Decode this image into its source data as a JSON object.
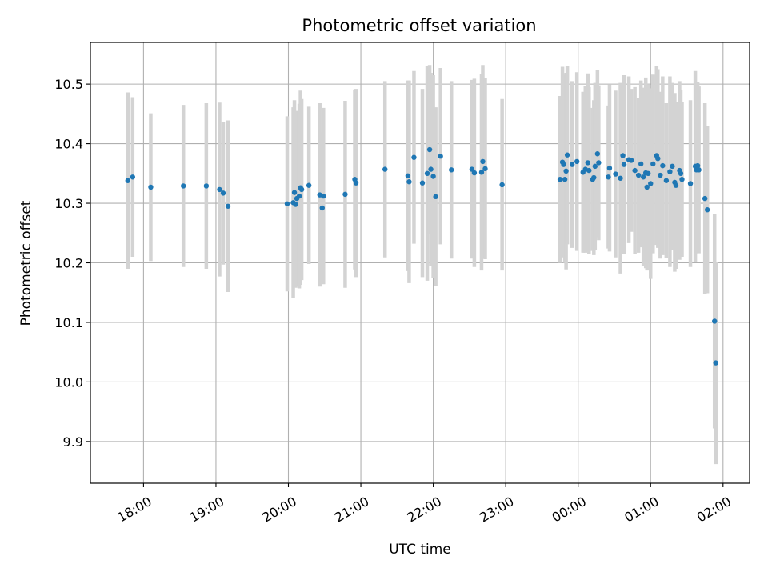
{
  "chart_data": {
    "type": "scatter",
    "title": "Photometric offset variation",
    "xlabel": "UTC time",
    "ylabel": "Photometric offset",
    "grid": true,
    "legend": "none",
    "x_unit": "hours (UTC, continuing past midnight)",
    "xlim": [
      "17:16",
      "02:22"
    ],
    "ylim": [
      9.83,
      10.57
    ],
    "x_tick_labels": [
      "18:00",
      "19:00",
      "20:00",
      "21:00",
      "22:00",
      "23:00",
      "00:00",
      "01:00",
      "02:00"
    ],
    "y_tick_values": [
      9.9,
      10.0,
      10.1,
      10.2,
      10.3,
      10.4,
      10.5
    ],
    "y_tick_labels": [
      "9.9",
      "10.0",
      "10.1",
      "10.2",
      "10.3",
      "10.4",
      "10.5"
    ],
    "colors": {
      "point": "#1f77b4",
      "errorbar": "#d3d3d3",
      "grid": "#b0b0b0"
    },
    "series": [
      {
        "values": [
          {
            "t": "17:47",
            "y": 10.338,
            "err": 0.148
          },
          {
            "t": "17:51",
            "y": 10.344,
            "err": 0.134
          },
          {
            "t": "18:06",
            "y": 10.327,
            "err": 0.124
          },
          {
            "t": "18:33",
            "y": 10.329,
            "err": 0.136
          },
          {
            "t": "18:52",
            "y": 10.329,
            "err": 0.139
          },
          {
            "t": "19:03",
            "y": 10.323,
            "err": 0.146
          },
          {
            "t": "19:06",
            "y": 10.317,
            "err": 0.12
          },
          {
            "t": "19:10",
            "y": 10.295,
            "err": 0.144
          },
          {
            "t": "19:59",
            "y": 10.299,
            "err": 0.147
          },
          {
            "t": "20:04",
            "y": 10.301,
            "err": 0.16
          },
          {
            "t": "20:05",
            "y": 10.318,
            "err": 0.155
          },
          {
            "t": "20:06",
            "y": 10.298,
            "err": 0.14
          },
          {
            "t": "20:07",
            "y": 10.308,
            "err": 0.147
          },
          {
            "t": "20:09",
            "y": 10.312,
            "err": 0.155
          },
          {
            "t": "20:10",
            "y": 10.326,
            "err": 0.163
          },
          {
            "t": "20:11",
            "y": 10.323,
            "err": 0.152
          },
          {
            "t": "20:17",
            "y": 10.33,
            "err": 0.132
          },
          {
            "t": "20:26",
            "y": 10.314,
            "err": 0.154
          },
          {
            "t": "20:28",
            "y": 10.292,
            "err": 0.127
          },
          {
            "t": "20:29",
            "y": 10.312,
            "err": 0.148
          },
          {
            "t": "20:47",
            "y": 10.315,
            "err": 0.157
          },
          {
            "t": "20:55",
            "y": 10.34,
            "err": 0.151
          },
          {
            "t": "20:56",
            "y": 10.334,
            "err": 0.158
          },
          {
            "t": "21:20",
            "y": 10.357,
            "err": 0.148
          },
          {
            "t": "21:39",
            "y": 10.346,
            "err": 0.16
          },
          {
            "t": "21:40",
            "y": 10.336,
            "err": 0.17
          },
          {
            "t": "21:44",
            "y": 10.377,
            "err": 0.145
          },
          {
            "t": "21:51",
            "y": 10.334,
            "err": 0.158
          },
          {
            "t": "21:55",
            "y": 10.35,
            "err": 0.18
          },
          {
            "t": "21:57",
            "y": 10.39,
            "err": 0.142
          },
          {
            "t": "21:58",
            "y": 10.357,
            "err": 0.162
          },
          {
            "t": "22:00",
            "y": 10.345,
            "err": 0.17
          },
          {
            "t": "22:02",
            "y": 10.311,
            "err": 0.15
          },
          {
            "t": "22:06",
            "y": 10.379,
            "err": 0.148
          },
          {
            "t": "22:15",
            "y": 10.356,
            "err": 0.149
          },
          {
            "t": "22:32",
            "y": 10.357,
            "err": 0.15
          },
          {
            "t": "22:34",
            "y": 10.351,
            "err": 0.158
          },
          {
            "t": "22:40",
            "y": 10.352,
            "err": 0.165
          },
          {
            "t": "22:41",
            "y": 10.37,
            "err": 0.162
          },
          {
            "t": "22:43",
            "y": 10.358,
            "err": 0.152
          },
          {
            "t": "22:57",
            "y": 10.331,
            "err": 0.144
          },
          {
            "t": "23:45",
            "y": 10.34,
            "err": 0.14
          },
          {
            "t": "23:47",
            "y": 10.369,
            "err": 0.16
          },
          {
            "t": "23:48",
            "y": 10.365,
            "err": 0.151
          },
          {
            "t": "23:49",
            "y": 10.34,
            "err": 0.14
          },
          {
            "t": "23:50",
            "y": 10.354,
            "err": 0.165
          },
          {
            "t": "23:51",
            "y": 10.381,
            "err": 0.15
          },
          {
            "t": "23:55",
            "y": 10.365,
            "err": 0.14
          },
          {
            "t": "23:59",
            "y": 10.37,
            "err": 0.15
          },
          {
            "t": "00:04",
            "y": 10.352,
            "err": 0.135
          },
          {
            "t": "00:06",
            "y": 10.357,
            "err": 0.14
          },
          {
            "t": "00:08",
            "y": 10.368,
            "err": 0.15
          },
          {
            "t": "00:09",
            "y": 10.355,
            "err": 0.14
          },
          {
            "t": "00:12",
            "y": 10.34,
            "err": 0.12
          },
          {
            "t": "00:13",
            "y": 10.343,
            "err": 0.13
          },
          {
            "t": "00:14",
            "y": 10.362,
            "err": 0.14
          },
          {
            "t": "00:16",
            "y": 10.383,
            "err": 0.14
          },
          {
            "t": "00:17",
            "y": 10.368,
            "err": 0.13
          },
          {
            "t": "00:25",
            "y": 10.344,
            "err": 0.12
          },
          {
            "t": "00:26",
            "y": 10.359,
            "err": 0.14
          },
          {
            "t": "00:31",
            "y": 10.349,
            "err": 0.14
          },
          {
            "t": "00:35",
            "y": 10.342,
            "err": 0.16
          },
          {
            "t": "00:37",
            "y": 10.38,
            "err": 0.12
          },
          {
            "t": "00:38",
            "y": 10.365,
            "err": 0.15
          },
          {
            "t": "00:42",
            "y": 10.373,
            "err": 0.14
          },
          {
            "t": "00:44",
            "y": 10.372,
            "err": 0.12
          },
          {
            "t": "00:47",
            "y": 10.355,
            "err": 0.14
          },
          {
            "t": "00:50",
            "y": 10.347,
            "err": 0.13
          },
          {
            "t": "00:52",
            "y": 10.366,
            "err": 0.14
          },
          {
            "t": "00:54",
            "y": 10.344,
            "err": 0.15
          },
          {
            "t": "00:56",
            "y": 10.351,
            "err": 0.16
          },
          {
            "t": "00:57",
            "y": 10.327,
            "err": 0.14
          },
          {
            "t": "00:58",
            "y": 10.35,
            "err": 0.15
          },
          {
            "t": "01:00",
            "y": 10.333,
            "err": 0.16
          },
          {
            "t": "01:02",
            "y": 10.366,
            "err": 0.15
          },
          {
            "t": "01:05",
            "y": 10.38,
            "err": 0.15
          },
          {
            "t": "01:06",
            "y": 10.375,
            "err": 0.15
          },
          {
            "t": "01:08",
            "y": 10.347,
            "err": 0.14
          },
          {
            "t": "01:10",
            "y": 10.363,
            "err": 0.15
          },
          {
            "t": "01:13",
            "y": 10.338,
            "err": 0.13
          },
          {
            "t": "01:16",
            "y": 10.353,
            "err": 0.16
          },
          {
            "t": "01:18",
            "y": 10.362,
            "err": 0.14
          },
          {
            "t": "01:20",
            "y": 10.335,
            "err": 0.15
          },
          {
            "t": "01:21",
            "y": 10.33,
            "err": 0.14
          },
          {
            "t": "01:24",
            "y": 10.355,
            "err": 0.15
          },
          {
            "t": "01:25",
            "y": 10.35,
            "err": 0.14
          },
          {
            "t": "01:26",
            "y": 10.34,
            "err": 0.13
          },
          {
            "t": "01:33",
            "y": 10.333,
            "err": 0.14
          },
          {
            "t": "01:37",
            "y": 10.362,
            "err": 0.16
          },
          {
            "t": "01:38",
            "y": 10.356,
            "err": 0.14
          },
          {
            "t": "01:39",
            "y": 10.363,
            "err": 0.14
          },
          {
            "t": "01:40",
            "y": 10.356,
            "err": 0.14
          },
          {
            "t": "01:45",
            "y": 10.308,
            "err": 0.16
          },
          {
            "t": "01:47",
            "y": 10.289,
            "err": 0.14
          },
          {
            "t": "01:53",
            "y": 10.102,
            "err": 0.18
          },
          {
            "t": "01:54",
            "y": 10.032,
            "err": 0.17
          }
        ]
      }
    ]
  }
}
